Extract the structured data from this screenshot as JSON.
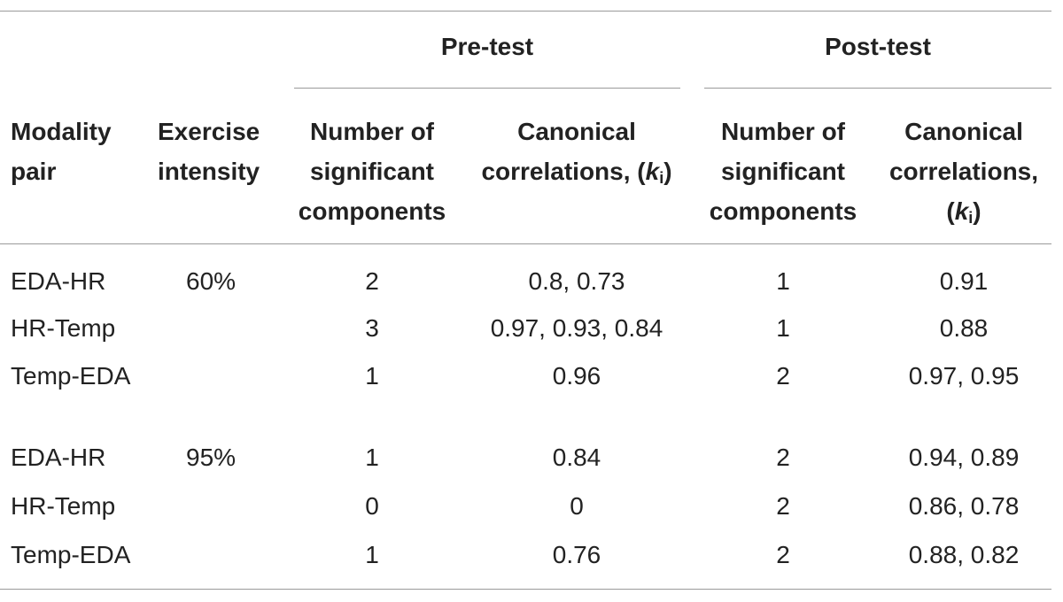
{
  "group_headers": {
    "pre": "Pre-test",
    "post": "Post-test"
  },
  "column_headers": {
    "modality_l1": "Modality",
    "modality_l2": "pair",
    "intensity_l1": "Exercise",
    "intensity_l2": "intensity",
    "pre_num_l1": "Number of",
    "pre_num_l2": "significant",
    "pre_num_l3": "components",
    "pre_can_l1": "Canonical",
    "pre_can_l2": "correlations, (",
    "pre_can_k": "k",
    "pre_can_i": "i",
    "pre_can_close": ")",
    "post_num_l1": "Number of",
    "post_num_l2": "significant",
    "post_num_l3": "components",
    "post_can_l1": "Canonical",
    "post_can_l2": "correlations,",
    "post_can_open": "(",
    "post_can_k": "k",
    "post_can_i": "i",
    "post_can_close": ")"
  },
  "rows": [
    {
      "pair": "EDA-HR",
      "intensity": "60%",
      "pre_n": "2",
      "pre_k": "0.8, 0.73",
      "post_n": "1",
      "post_k": "0.91"
    },
    {
      "pair": "HR-Temp",
      "intensity": "",
      "pre_n": "3",
      "pre_k": "0.97, 0.93, 0.84",
      "post_n": "1",
      "post_k": "0.88"
    },
    {
      "pair": "Temp-EDA",
      "intensity": "",
      "pre_n": "1",
      "pre_k": "0.96",
      "post_n": "2",
      "post_k": "0.97, 0.95"
    },
    {
      "pair": "EDA-HR",
      "intensity": "95%",
      "pre_n": "1",
      "pre_k": "0.84",
      "post_n": "2",
      "post_k": "0.94, 0.89"
    },
    {
      "pair": "HR-Temp",
      "intensity": "",
      "pre_n": "0",
      "pre_k": "0",
      "post_n": "2",
      "post_k": "0.86, 0.78"
    },
    {
      "pair": "Temp-EDA",
      "intensity": "",
      "pre_n": "1",
      "pre_k": "0.76",
      "post_n": "2",
      "post_k": "0.88, 0.82"
    }
  ]
}
